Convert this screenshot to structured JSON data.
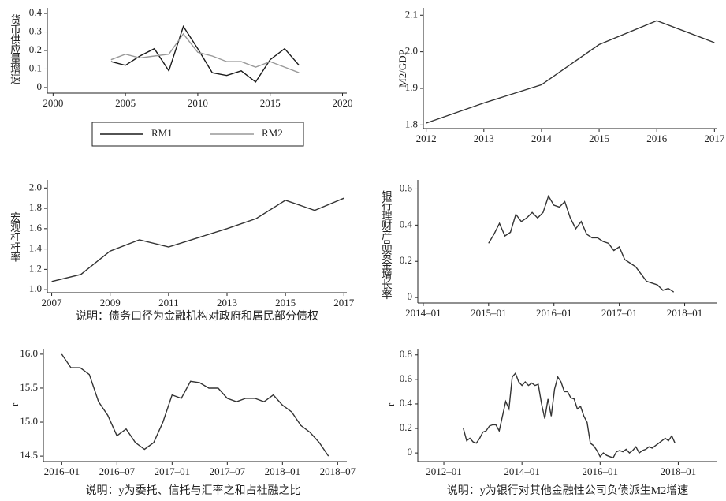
{
  "chart_data": [
    {
      "type": "line",
      "y_label": "货币供应量增速",
      "x": [
        2004,
        2005,
        2006,
        2007,
        2008,
        2009,
        2010,
        2011,
        2012,
        2013,
        2014,
        2015,
        2016,
        2017
      ],
      "series": [
        {
          "name": "RM1",
          "color": "#1a1a1a",
          "values": [
            0.14,
            0.12,
            0.17,
            0.21,
            0.09,
            0.33,
            0.21,
            0.08,
            0.065,
            0.09,
            0.03,
            0.15,
            0.21,
            0.12
          ]
        },
        {
          "name": "RM2",
          "color": "#999999",
          "values": [
            0.15,
            0.18,
            0.16,
            0.17,
            0.18,
            0.29,
            0.19,
            0.17,
            0.14,
            0.14,
            0.11,
            0.14,
            0.11,
            0.08
          ]
        }
      ],
      "xlim": [
        1999.6,
        2020.3
      ],
      "xticks": [
        2000,
        2005,
        2010,
        2015,
        2020
      ],
      "ylim": [
        -0.03,
        0.43
      ],
      "yticks": [
        0,
        0.1,
        0.2,
        0.3,
        0.4
      ],
      "legend": "bottom"
    },
    {
      "type": "line",
      "y_label": "M2/GDP",
      "x": [
        2012,
        2013,
        2014,
        2015,
        2016,
        2017
      ],
      "values": [
        1.805,
        1.86,
        1.91,
        2.02,
        2.085,
        2.025
      ],
      "color": "#333333",
      "xlim": [
        2011.95,
        2017.05
      ],
      "xticks": [
        2012,
        2013,
        2014,
        2015,
        2016,
        2017
      ],
      "ylim": [
        1.79,
        2.12
      ],
      "yticks": [
        1.8,
        1.9,
        {
          "value": 2,
          "label": "2.0"
        },
        2.1
      ]
    },
    {
      "type": "line",
      "y_label": "宏观杠杆率",
      "note": "说明：债务口径为金融机构对政府和居民部分债权",
      "x": [
        2007,
        2008,
        2009,
        2010,
        2011,
        2012,
        2013,
        2014,
        2015,
        2016,
        2017
      ],
      "values": [
        1.08,
        1.15,
        1.38,
        1.49,
        1.42,
        1.51,
        1.6,
        1.7,
        1.88,
        1.78,
        1.9
      ],
      "color": "#333333",
      "xlim": [
        2006.85,
        2017.1
      ],
      "xticks": [
        2007,
        2009,
        2011,
        2013,
        2015,
        2017
      ],
      "ylim": [
        0.97,
        2.08
      ],
      "yticks": [
        {
          "value": 1,
          "label": "1.0"
        },
        1.2,
        1.4,
        1.6,
        1.8,
        {
          "value": 2,
          "label": "2.0"
        }
      ]
    },
    {
      "type": "line",
      "y_label": "银行理财产品资金增长率",
      "x": [
        "2015-01",
        "2015-02",
        "2015-03",
        "2015-04",
        "2015-05",
        "2015-06",
        "2015-07",
        "2015-08",
        "2015-09",
        "2015-10",
        "2015-11",
        "2015-12",
        "2016-01",
        "2016-02",
        "2016-03",
        "2016-04",
        "2016-05",
        "2016-06",
        "2016-07",
        "2016-08",
        "2016-09",
        "2016-10",
        "2016-11",
        "2016-12",
        "2017-01",
        "2017-02",
        "2017-03",
        "2017-04",
        "2017-05",
        "2017-06",
        "2017-07",
        "2017-08",
        "2017-09",
        "2017-10",
        "2017-11"
      ],
      "values": [
        0.3,
        0.35,
        0.41,
        0.34,
        0.36,
        0.46,
        0.42,
        0.44,
        0.47,
        0.44,
        0.47,
        0.56,
        0.51,
        0.5,
        0.53,
        0.44,
        0.38,
        0.42,
        0.35,
        0.33,
        0.33,
        0.31,
        0.3,
        0.26,
        0.28,
        0.21,
        0.19,
        0.17,
        0.13,
        0.09,
        0.08,
        0.07,
        0.04,
        0.05,
        0.03
      ],
      "color": "#333333",
      "xlim": [
        "2013-12",
        "2018-07"
      ],
      "xticks": [
        "2014–01",
        "2015–01",
        "2016–01",
        "2017–01",
        "2018–01"
      ],
      "ylim": [
        -0.03,
        0.65
      ],
      "yticks": [
        0,
        0.2,
        0.4,
        0.6
      ]
    },
    {
      "type": "line",
      "y_label": "r",
      "note": "说明：y为委托、信托与汇率之和占社融之比",
      "x": [
        "2016-01",
        "2016-02",
        "2016-03",
        "2016-04",
        "2016-05",
        "2016-06",
        "2016-07",
        "2016-08",
        "2016-09",
        "2016-10",
        "2016-11",
        "2016-12",
        "2017-01",
        "2017-02",
        "2017-03",
        "2017-04",
        "2017-05",
        "2017-06",
        "2017-07",
        "2017-08",
        "2017-09",
        "2017-10",
        "2017-11",
        "2017-12",
        "2018-01",
        "2018-02",
        "2018-03",
        "2018-04",
        "2018-05",
        "2018-06"
      ],
      "values": [
        16.0,
        15.8,
        15.8,
        15.7,
        15.3,
        15.1,
        14.8,
        14.9,
        14.7,
        14.6,
        14.7,
        15.0,
        15.4,
        15.35,
        15.6,
        15.58,
        15.5,
        15.5,
        15.35,
        15.3,
        15.35,
        15.35,
        15.3,
        15.4,
        15.25,
        15.15,
        14.95,
        14.85,
        14.7,
        14.5
      ],
      "color": "#333333",
      "xlim": [
        "2015-11",
        "2018-08"
      ],
      "xticks": [
        "2016–01",
        "2016–07",
        "2017–01",
        "2017–07",
        "2018–01",
        "2018–07"
      ],
      "ylim": [
        14.42,
        16.08
      ],
      "yticks": [
        14.5,
        {
          "value": 15,
          "label": "15.0"
        },
        15.5,
        {
          "value": 16,
          "label": "16.0"
        }
      ]
    },
    {
      "type": "line",
      "y_label": "r",
      "note": "说明：y为银行对其他金融性公司负债派生M2增速",
      "x": [
        "2012-07",
        "2012-08",
        "2012-09",
        "2012-10",
        "2012-11",
        "2012-12",
        "2013-01",
        "2013-02",
        "2013-03",
        "2013-04",
        "2013-05",
        "2013-06",
        "2013-07",
        "2013-08",
        "2013-09",
        "2013-10",
        "2013-11",
        "2013-12",
        "2014-01",
        "2014-02",
        "2014-03",
        "2014-04",
        "2014-05",
        "2014-06",
        "2014-07",
        "2014-08",
        "2014-09",
        "2014-10",
        "2014-11",
        "2014-12",
        "2015-01",
        "2015-02",
        "2015-03",
        "2015-04",
        "2015-05",
        "2015-06",
        "2015-07",
        "2015-08",
        "2015-09",
        "2015-10",
        "2015-11",
        "2015-12",
        "2016-01",
        "2016-02",
        "2016-03",
        "2016-04",
        "2016-05",
        "2016-06",
        "2016-07",
        "2016-08",
        "2016-09",
        "2016-10",
        "2016-11",
        "2016-12",
        "2017-01",
        "2017-02",
        "2017-03",
        "2017-04",
        "2017-05",
        "2017-06",
        "2017-07",
        "2017-08",
        "2017-09",
        "2017-10",
        "2017-11",
        "2017-12"
      ],
      "values": [
        0.2,
        0.1,
        0.12,
        0.09,
        0.08,
        0.12,
        0.17,
        0.18,
        0.22,
        0.23,
        0.23,
        0.18,
        0.3,
        0.42,
        0.36,
        0.62,
        0.65,
        0.58,
        0.55,
        0.58,
        0.55,
        0.57,
        0.55,
        0.56,
        0.4,
        0.28,
        0.44,
        0.3,
        0.52,
        0.62,
        0.58,
        0.5,
        0.5,
        0.45,
        0.44,
        0.36,
        0.38,
        0.3,
        0.25,
        0.08,
        0.06,
        0.02,
        -0.03,
        0.0,
        -0.02,
        -0.03,
        -0.04,
        0.01,
        0.02,
        0.01,
        0.03,
        0.0,
        0.02,
        0.05,
        0.0,
        0.02,
        0.03,
        0.05,
        0.04,
        0.06,
        0.08,
        0.1,
        0.12,
        0.1,
        0.14,
        0.08
      ],
      "color": "#333333",
      "xlim": [
        "2011-05",
        "2019-01"
      ],
      "xticks": [
        "2012–01",
        "2014–01",
        "2016–01",
        "2018–01"
      ],
      "ylim": [
        -0.07,
        0.85
      ],
      "yticks": [
        0,
        0.2,
        0.4,
        0.6,
        0.8
      ]
    }
  ]
}
